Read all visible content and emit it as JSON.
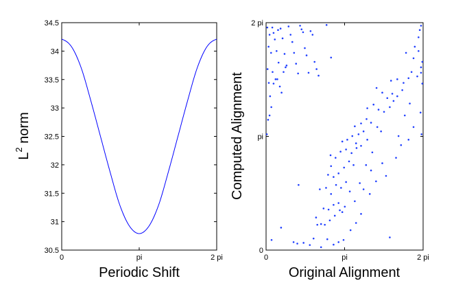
{
  "chart_data": [
    {
      "type": "line",
      "ylabel_base": "L",
      "ylabel_superscript": "2",
      "ylabel_rest": " norm",
      "xlabel": "Periodic Shift",
      "xlim": [
        0,
        6.2832
      ],
      "ylim": [
        30.5,
        34.5
      ],
      "grid": false,
      "x_ticks": [
        {
          "value": 0,
          "label": "0"
        },
        {
          "value": 3.1416,
          "label": "pi"
        },
        {
          "value": 6.2832,
          "label": "2 pi"
        }
      ],
      "y_ticks": [
        {
          "value": 30.5,
          "label": "30.5"
        },
        {
          "value": 31,
          "label": "31"
        },
        {
          "value": 31.5,
          "label": "31.5"
        },
        {
          "value": 32,
          "label": "32"
        },
        {
          "value": 32.5,
          "label": "32.5"
        },
        {
          "value": 33,
          "label": "33"
        },
        {
          "value": 33.5,
          "label": "33.5"
        },
        {
          "value": 34,
          "label": "34"
        },
        {
          "value": 34.5,
          "label": "34.5"
        }
      ],
      "series": [
        {
          "color": "#0000ff",
          "x": [
            0,
            0.3927,
            0.7854,
            1.1781,
            1.5708,
            1.9635,
            2.3562,
            2.7489,
            3.1416,
            3.5343,
            3.927,
            4.3197,
            4.7124,
            5.1051,
            5.4978,
            5.8905,
            6.2832
          ],
          "y": [
            34.21,
            34.08,
            33.71,
            33.13,
            32.5,
            31.87,
            31.29,
            30.92,
            30.79,
            30.92,
            31.29,
            31.87,
            32.5,
            33.13,
            33.71,
            34.08,
            34.21
          ]
        }
      ]
    },
    {
      "type": "scatter",
      "xlabel": "Original Alignment",
      "ylabel": "Computed Alignment",
      "xlim": [
        0,
        6.2832
      ],
      "ylim": [
        0,
        6.2832
      ],
      "grid": false,
      "marker_color": "#1f3fff",
      "x_ticks": [
        {
          "value": 0,
          "label": "0"
        },
        {
          "value": 3.1416,
          "label": "pi"
        },
        {
          "value": 6.2832,
          "label": "2 pi"
        }
      ],
      "y_ticks": [
        {
          "value": 0,
          "label": "0"
        },
        {
          "value": 3.1416,
          "label": "pi"
        },
        {
          "value": 6.2832,
          "label": "2 pi"
        }
      ],
      "points": [
        [
          0.05,
          6.15
        ],
        [
          0.1,
          5.62
        ],
        [
          0.14,
          5.95
        ],
        [
          0.2,
          5.45
        ],
        [
          0.26,
          4.92
        ],
        [
          0.06,
          5.0
        ],
        [
          0.11,
          4.62
        ],
        [
          0.16,
          4.25
        ],
        [
          0.21,
          3.95
        ],
        [
          0.03,
          3.2
        ],
        [
          0.08,
          3.6
        ],
        [
          0.14,
          3.72
        ],
        [
          0.3,
          6.0
        ],
        [
          0.35,
          5.82
        ],
        [
          0.42,
          5.5
        ],
        [
          0.5,
          5.18
        ],
        [
          0.58,
          6.12
        ],
        [
          0.66,
          5.85
        ],
        [
          0.74,
          5.42
        ],
        [
          0.82,
          5.1
        ],
        [
          0.9,
          6.18
        ],
        [
          0.98,
          5.95
        ],
        [
          1.05,
          5.75
        ],
        [
          1.12,
          5.45
        ],
        [
          1.2,
          5.15
        ],
        [
          1.28,
          4.88
        ],
        [
          1.36,
          6.2
        ],
        [
          1.42,
          6.1
        ],
        [
          1.48,
          6.02
        ],
        [
          1.55,
          5.58
        ],
        [
          1.62,
          5.38
        ],
        [
          1.7,
          4.9
        ],
        [
          1.78,
          6.05
        ],
        [
          1.86,
          5.95
        ],
        [
          1.94,
          5.2
        ],
        [
          2.02,
          5.0
        ],
        [
          2.1,
          4.82
        ],
        [
          0.45,
          4.72
        ],
        [
          0.55,
          4.52
        ],
        [
          0.62,
          4.35
        ],
        [
          0.7,
          4.92
        ],
        [
          0.78,
          5.05
        ],
        [
          0.3,
          4.6
        ],
        [
          0.38,
          4.72
        ],
        [
          0.25,
          6.15
        ],
        [
          0.48,
          6.08
        ],
        [
          2.42,
          6.22
        ],
        [
          2.6,
          5.32
        ],
        [
          0.22,
          0.28
        ],
        [
          0.6,
          0.62
        ],
        [
          1.1,
          0.22
        ],
        [
          1.25,
          0.18
        ],
        [
          1.5,
          0.2
        ],
        [
          1.75,
          0.14
        ],
        [
          1.9,
          0.32
        ],
        [
          2.2,
          0.08
        ],
        [
          2.45,
          0.3
        ],
        [
          2.7,
          0.15
        ],
        [
          2.9,
          0.22
        ],
        [
          3.1,
          0.28
        ],
        [
          2.05,
          0.7
        ],
        [
          2.2,
          0.72
        ],
        [
          2.35,
          0.7
        ],
        [
          2.55,
          0.82
        ],
        [
          2.75,
          0.95
        ],
        [
          2.95,
          1.1
        ],
        [
          3.15,
          1.2
        ],
        [
          2.3,
          1.15
        ],
        [
          2.5,
          1.12
        ],
        [
          2.7,
          1.25
        ],
        [
          2.9,
          1.3
        ],
        [
          3.05,
          1.05
        ],
        [
          2.15,
          1.68
        ],
        [
          2.4,
          1.72
        ],
        [
          2.6,
          1.55
        ],
        [
          2.8,
          1.8
        ],
        [
          3.0,
          1.72
        ],
        [
          3.2,
          1.88
        ],
        [
          3.35,
          1.62
        ],
        [
          2.48,
          2.08
        ],
        [
          2.7,
          2.02
        ],
        [
          2.9,
          2.12
        ],
        [
          3.12,
          2.28
        ],
        [
          3.32,
          2.45
        ],
        [
          3.5,
          2.35
        ],
        [
          2.58,
          2.62
        ],
        [
          2.78,
          2.55
        ],
        [
          2.98,
          2.72
        ],
        [
          3.2,
          2.78
        ],
        [
          3.42,
          2.68
        ],
        [
          3.62,
          2.82
        ],
        [
          3.8,
          2.88
        ],
        [
          3.05,
          3.0
        ],
        [
          3.25,
          3.05
        ],
        [
          3.45,
          3.15
        ],
        [
          3.7,
          3.2
        ],
        [
          3.9,
          3.28
        ],
        [
          4.05,
          3.05
        ],
        [
          3.55,
          3.42
        ],
        [
          3.8,
          3.5
        ],
        [
          4.02,
          3.62
        ],
        [
          4.2,
          3.52
        ],
        [
          4.45,
          3.4
        ],
        [
          4.6,
          3.28
        ],
        [
          4.05,
          3.92
        ],
        [
          4.3,
          4.02
        ],
        [
          4.5,
          3.88
        ],
        [
          4.72,
          3.82
        ],
        [
          4.95,
          3.95
        ],
        [
          5.1,
          4.12
        ],
        [
          4.42,
          4.48
        ],
        [
          4.65,
          4.35
        ],
        [
          4.85,
          4.2
        ],
        [
          5.05,
          4.32
        ],
        [
          5.25,
          4.25
        ],
        [
          5.45,
          4.42
        ],
        [
          5.0,
          4.68
        ],
        [
          5.25,
          4.72
        ],
        [
          5.5,
          4.62
        ],
        [
          5.7,
          4.75
        ],
        [
          5.82,
          4.92
        ],
        [
          6.05,
          4.8
        ],
        [
          6.2,
          4.9
        ],
        [
          5.6,
          5.45
        ],
        [
          5.9,
          5.3
        ],
        [
          6.1,
          5.5
        ],
        [
          6.25,
          5.2
        ],
        [
          5.95,
          5.62
        ],
        [
          6.1,
          5.88
        ],
        [
          6.2,
          5.05
        ],
        [
          6.15,
          6.08
        ],
        [
          6.2,
          6.2
        ],
        [
          6.25,
          4.6
        ],
        [
          6.18,
          3.8
        ],
        [
          6.22,
          3.2
        ],
        [
          4.95,
          0.35
        ],
        [
          4.65,
          2.4
        ],
        [
          4.2,
          2.2
        ],
        [
          5.2,
          2.55
        ],
        [
          5.4,
          2.9
        ],
        [
          5.7,
          3.05
        ],
        [
          5.9,
          3.4
        ],
        [
          3.75,
          1.85
        ],
        [
          3.55,
          1.35
        ],
        [
          3.9,
          1.68
        ],
        [
          4.15,
          1.55
        ],
        [
          4.4,
          1.9
        ],
        [
          3.38,
          0.55
        ],
        [
          3.6,
          0.75
        ],
        [
          3.8,
          1.0
        ],
        [
          4.0,
          2.35
        ],
        [
          1.3,
          1.8
        ],
        [
          2.0,
          0.9
        ],
        [
          2.6,
          2.32
        ],
        [
          3.6,
          2.95
        ],
        [
          4.25,
          2.7
        ],
        [
          4.8,
          2.05
        ],
        [
          5.3,
          3.15
        ],
        [
          5.55,
          3.72
        ],
        [
          5.75,
          4.05
        ]
      ]
    }
  ]
}
